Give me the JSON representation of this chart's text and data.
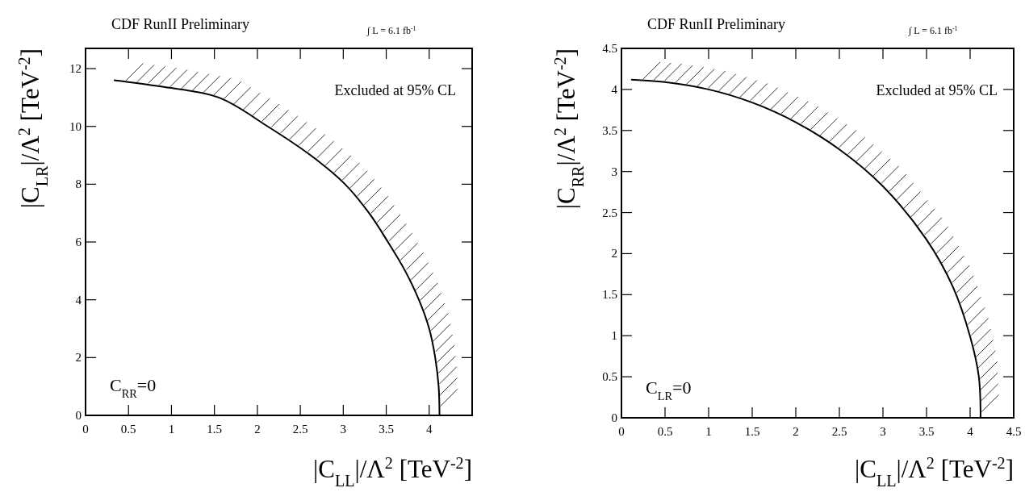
{
  "chart_data": [
    {
      "type": "line",
      "title": "CDF RunII Preliminary",
      "xlabel": "|C$_{LL}$|/Λ$^{2}$ [TeV$^{-2}$]",
      "ylabel": "|C$_{LR}$|/Λ$^{2}$ [TeV$^{-2}$]",
      "annotations": [
        "∫ L = 6.1 fb$^{-1}$",
        "Excluded at 95% CL",
        "C$_{RR}$=0"
      ],
      "xlim": [
        0,
        4.5
      ],
      "ylim": [
        0,
        12.7
      ],
      "xticks": [
        0,
        0.5,
        1,
        1.5,
        2,
        2.5,
        3,
        3.5,
        4
      ],
      "yticks": [
        0,
        2,
        4,
        6,
        8,
        10,
        12
      ],
      "grid": false,
      "series": [
        {
          "color": "#000000",
          "x": [
            0.33,
            0.88,
            1.55,
            2.12,
            2.62,
            3.02,
            3.3,
            3.52,
            3.72,
            3.88,
            4.0,
            4.07,
            4.11,
            4.12
          ],
          "values": [
            11.6,
            11.38,
            11.0,
            10.0,
            9.0,
            8.0,
            7.0,
            6.0,
            5.0,
            4.0,
            3.0,
            2.0,
            1.0,
            0
          ]
        }
      ]
    },
    {
      "type": "line",
      "title": "CDF RunII Preliminary",
      "xlabel": "|C$_{LL}$|/Λ$^{2}$ [TeV$^{-2}$]",
      "ylabel": "|C$_{RR}$|/Λ$^{2}$ [TeV$^{-2}$]",
      "annotations": [
        "∫ L = 6.1 fb$^{-1}$",
        "Excluded at 95% CL",
        "C$_{LR}$=0"
      ],
      "xlim": [
        0,
        4.5
      ],
      "ylim": [
        0,
        4.5
      ],
      "xticks": [
        0,
        0.5,
        1,
        1.5,
        2,
        2.5,
        3,
        3.5,
        4,
        4.5
      ],
      "yticks": [
        0,
        0.5,
        1,
        1.5,
        2,
        2.5,
        3,
        3.5,
        4,
        4.5
      ],
      "grid": false,
      "series": [
        {
          "color": "#000000",
          "x": [
            0.11,
            0.5,
            1,
            1.5,
            2,
            2.5,
            3,
            3.5,
            3.8,
            4,
            4.1,
            4.12
          ],
          "values": [
            4.12,
            4.09,
            4.0,
            3.84,
            3.6,
            3.27,
            2.82,
            2.17,
            1.6,
            0.99,
            0.5,
            0
          ]
        }
      ]
    }
  ]
}
